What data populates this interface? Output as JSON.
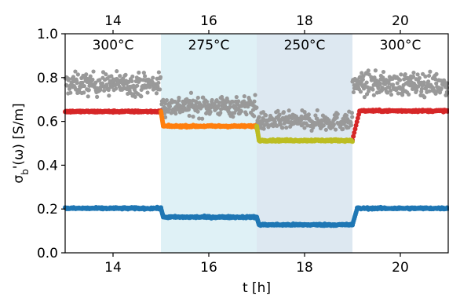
{
  "chart_data": {
    "type": "scatter",
    "xlabel": "t [h]",
    "ylabel": "σ_b'(ω) [S/m]",
    "xlim": [
      13,
      21
    ],
    "ylim": [
      0.0,
      1.0
    ],
    "x_ticks": [
      14,
      16,
      18,
      20
    ],
    "y_ticks": [
      0.0,
      0.2,
      0.4,
      0.6,
      0.8,
      1.0
    ],
    "x_tick_labels": [
      "14",
      "16",
      "18",
      "20"
    ],
    "y_tick_labels": [
      "0.0",
      "0.2",
      "0.4",
      "0.6",
      "0.8",
      "1.0"
    ],
    "top_axis_ticks": [
      14,
      16,
      18,
      20
    ],
    "top_axis_tick_labels": [
      "14",
      "16",
      "18",
      "20"
    ],
    "grid": false,
    "shaded_regions": [
      {
        "x_start": 15,
        "x_end": 17,
        "color": "#dff1f6",
        "label": "275°C"
      },
      {
        "x_start": 17,
        "x_end": 19,
        "color": "#dde8f1",
        "label": "250°C"
      }
    ],
    "region_labels": [
      {
        "x": 14,
        "text": "300°C"
      },
      {
        "x": 16,
        "text": "275°C"
      },
      {
        "x": 18,
        "text": "250°C"
      },
      {
        "x": 20,
        "text": "300°C"
      }
    ],
    "series": [
      {
        "color": "#999999",
        "style": "scattered",
        "segments": [
          {
            "x_start": 13,
            "x_end": 15,
            "mean": 0.77,
            "spread": 0.05
          },
          {
            "x_start": 15,
            "x_end": 17,
            "mean": 0.67,
            "spread": 0.045
          },
          {
            "x_start": 17,
            "x_end": 19,
            "mean": 0.6,
            "spread": 0.04
          },
          {
            "x_start": 19,
            "x_end": 21,
            "mean": 0.77,
            "spread": 0.05
          }
        ]
      },
      {
        "color": "#d62728",
        "style": "line-dots",
        "segments": [
          {
            "x_start": 13,
            "x_end": 15,
            "value": 0.645
          },
          {
            "x_start": 19.15,
            "x_end": 21,
            "value": 0.648
          }
        ],
        "transitions": [
          {
            "x_start": 19.0,
            "x_end": 19.15,
            "from": 0.515,
            "to": 0.648
          }
        ]
      },
      {
        "color": "#ff7f0e",
        "style": "line-dots",
        "segments": [
          {
            "x_start": 15.05,
            "x_end": 17,
            "value": 0.578
          }
        ],
        "transitions": [
          {
            "x_start": 15.0,
            "x_end": 15.05,
            "from": 0.645,
            "to": 0.578
          }
        ]
      },
      {
        "color": "#bcbd22",
        "style": "line-dots",
        "segments": [
          {
            "x_start": 17.05,
            "x_end": 19.0,
            "value": 0.513
          }
        ],
        "transitions": [
          {
            "x_start": 17.0,
            "x_end": 17.05,
            "from": 0.578,
            "to": 0.513
          }
        ]
      },
      {
        "color": "#1f77b4",
        "style": "line-dots",
        "segments": [
          {
            "x_start": 13,
            "x_end": 15,
            "value": 0.203
          },
          {
            "x_start": 15.05,
            "x_end": 17,
            "value": 0.163
          },
          {
            "x_start": 17.05,
            "x_end": 19,
            "value": 0.128
          },
          {
            "x_start": 19.1,
            "x_end": 21,
            "value": 0.203
          }
        ],
        "transitions": [
          {
            "x_start": 15.0,
            "x_end": 15.05,
            "from": 0.203,
            "to": 0.163
          },
          {
            "x_start": 17.0,
            "x_end": 17.05,
            "from": 0.163,
            "to": 0.128
          },
          {
            "x_start": 19.0,
            "x_end": 19.1,
            "from": 0.128,
            "to": 0.203
          }
        ]
      }
    ]
  }
}
